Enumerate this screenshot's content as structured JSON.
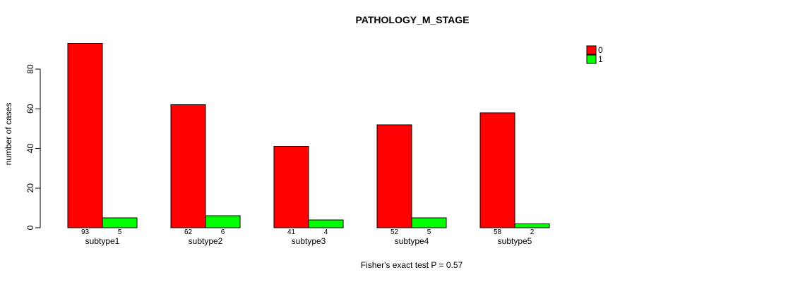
{
  "chart_data": {
    "type": "bar",
    "title": "PATHOLOGY_M_STAGE",
    "categories": [
      "subtype1",
      "subtype2",
      "subtype3",
      "subtype4",
      "subtype5"
    ],
    "series": [
      {
        "name": "0",
        "color": "#FF0000",
        "values": [
          93,
          62,
          41,
          52,
          58
        ]
      },
      {
        "name": "1",
        "color": "#00FF00",
        "values": [
          5,
          6,
          4,
          5,
          2
        ]
      }
    ],
    "xlabel": "",
    "ylabel": "number of cases",
    "yticks": [
      0,
      20,
      40,
      60,
      80
    ],
    "ylim": [
      0,
      93
    ],
    "grid": false,
    "bar_value_labels_shown": true,
    "legend_position": "top-right-outside",
    "legend_entries": [
      "0",
      "1"
    ],
    "annotation": "Fisher's exact test P = 0.57"
  },
  "colors": {
    "series0": "#FF0000",
    "series1": "#00FF00",
    "axis": "#000000",
    "background": "#FFFFFF"
  }
}
